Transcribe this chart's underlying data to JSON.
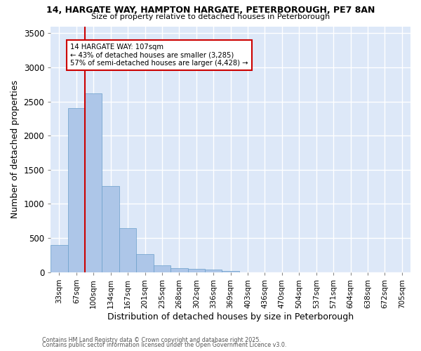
{
  "title_line1": "14, HARGATE WAY, HAMPTON HARGATE, PETERBOROUGH, PE7 8AN",
  "title_line2": "Size of property relative to detached houses in Peterborough",
  "xlabel": "Distribution of detached houses by size in Peterborough",
  "ylabel": "Number of detached properties",
  "bin_labels": [
    "33sqm",
    "67sqm",
    "100sqm",
    "134sqm",
    "167sqm",
    "201sqm",
    "235sqm",
    "268sqm",
    "302sqm",
    "336sqm",
    "369sqm",
    "403sqm",
    "436sqm",
    "470sqm",
    "504sqm",
    "537sqm",
    "571sqm",
    "604sqm",
    "638sqm",
    "672sqm",
    "705sqm"
  ],
  "bar_values": [
    400,
    2400,
    2620,
    1260,
    650,
    270,
    105,
    60,
    50,
    35,
    20,
    0,
    0,
    0,
    0,
    0,
    0,
    0,
    0,
    0,
    0
  ],
  "bar_color": "#adc6e8",
  "bar_edge_color": "#6a9fcb",
  "vline_color": "#cc0000",
  "annotation_text": "14 HARGATE WAY: 107sqm\n← 43% of detached houses are smaller (3,285)\n57% of semi-detached houses are larger (4,428) →",
  "annotation_box_color": "#ffffff",
  "annotation_box_edge": "#cc0000",
  "ylim": [
    0,
    3600
  ],
  "yticks": [
    0,
    500,
    1000,
    1500,
    2000,
    2500,
    3000,
    3500
  ],
  "background_color": "#dde8f8",
  "grid_color": "#ffffff",
  "footnote_line1": "Contains HM Land Registry data © Crown copyright and database right 2025.",
  "footnote_line2": "Contains public sector information licensed under the Open Government Licence v3.0."
}
